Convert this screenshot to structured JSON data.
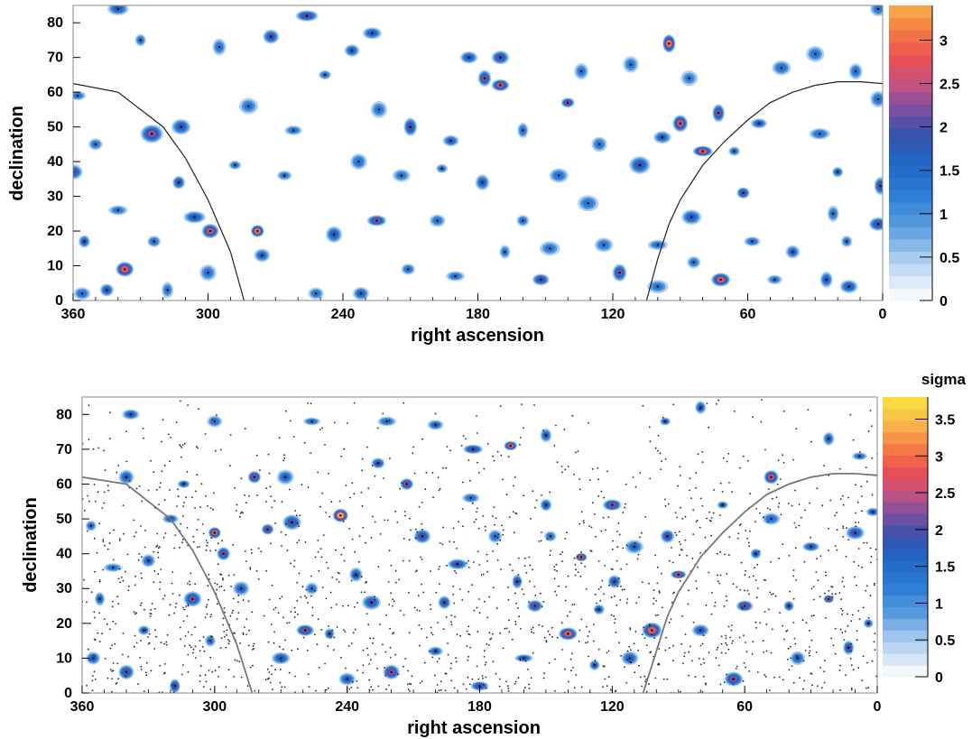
{
  "chart_data": [
    {
      "type": "heatmap",
      "id": "top",
      "title": "",
      "xlabel": "right ascension",
      "ylabel": "declination",
      "xlim": [
        360,
        0
      ],
      "ylim": [
        0,
        85
      ],
      "x_ticks": [
        360,
        300,
        240,
        180,
        120,
        60,
        0
      ],
      "y_ticks": [
        0,
        10,
        20,
        30,
        40,
        50,
        60,
        70,
        80
      ],
      "colorbar": {
        "label": "",
        "range": [
          0,
          3.4
        ],
        "ticks": [
          0,
          0.5,
          1,
          1.5,
          2,
          2.5,
          3
        ]
      },
      "boundary_curves": [
        {
          "x": [
            360,
            340,
            320,
            310,
            300,
            290,
            284
          ],
          "y": [
            62.5,
            60,
            50,
            41,
            29,
            14,
            0
          ]
        },
        {
          "x": [
            105,
            100,
            95,
            90,
            80,
            70,
            60,
            50,
            40,
            30,
            20,
            10,
            0
          ],
          "y": [
            0,
            12,
            22,
            29,
            39,
            46,
            52,
            57,
            60,
            62,
            63,
            63,
            62.5
          ]
        }
      ],
      "hotspots": [
        {
          "x": 337,
          "y": 9,
          "s": 3.0
        },
        {
          "x": 278,
          "y": 20,
          "s": 3.3
        },
        {
          "x": 299,
          "y": 20,
          "s": 2.8
        },
        {
          "x": 95,
          "y": 74,
          "s": 3.2
        },
        {
          "x": 72,
          "y": 6,
          "s": 2.9
        },
        {
          "x": 90,
          "y": 51,
          "s": 2.8
        },
        {
          "x": 80,
          "y": 43,
          "s": 2.9
        },
        {
          "x": 170,
          "y": 62,
          "s": 2.7
        },
        {
          "x": 225,
          "y": 23,
          "s": 2.3
        },
        {
          "x": 170,
          "y": 70,
          "s": 2.1
        },
        {
          "x": 140,
          "y": 57,
          "s": 2.3
        },
        {
          "x": 325,
          "y": 48,
          "s": 2.4
        },
        {
          "x": 313,
          "y": 34,
          "s": 2.0
        },
        {
          "x": 256,
          "y": 82,
          "s": 2.2
        },
        {
          "x": 272,
          "y": 76,
          "s": 2.0
        },
        {
          "x": 227,
          "y": 77,
          "s": 1.9
        },
        {
          "x": 210,
          "y": 50,
          "s": 2.2
        },
        {
          "x": 192,
          "y": 46,
          "s": 1.8
        },
        {
          "x": 184,
          "y": 70,
          "s": 1.9
        },
        {
          "x": 177,
          "y": 64,
          "s": 2.3
        },
        {
          "x": 236,
          "y": 72,
          "s": 1.8
        },
        {
          "x": 73,
          "y": 54,
          "s": 2.4
        },
        {
          "x": 117,
          "y": 8,
          "s": 2.3
        },
        {
          "x": 152,
          "y": 6,
          "s": 2.2
        },
        {
          "x": 98,
          "y": 47,
          "s": 1.7
        },
        {
          "x": 85,
          "y": 24,
          "s": 1.9
        },
        {
          "x": 62,
          "y": 31,
          "s": 2.2
        },
        {
          "x": 55,
          "y": 51,
          "s": 1.8
        },
        {
          "x": 355,
          "y": 17,
          "s": 1.8
        },
        {
          "x": 360,
          "y": 37,
          "s": 2.1
        },
        {
          "x": 306,
          "y": 24,
          "s": 1.9
        },
        {
          "x": 276,
          "y": 13,
          "s": 1.7
        },
        {
          "x": 244,
          "y": 19,
          "s": 1.9
        },
        {
          "x": 232,
          "y": 2,
          "s": 1.8
        },
        {
          "x": 211,
          "y": 9,
          "s": 1.6
        },
        {
          "x": 190,
          "y": 7,
          "s": 1.5
        },
        {
          "x": 178,
          "y": 34,
          "s": 1.8
        },
        {
          "x": 108,
          "y": 39,
          "s": 2.0
        },
        {
          "x": 131,
          "y": 28,
          "s": 1.5
        },
        {
          "x": 144,
          "y": 36,
          "s": 1.6
        },
        {
          "x": 358,
          "y": 59,
          "s": 1.5
        },
        {
          "x": 350,
          "y": 45,
          "s": 1.5
        },
        {
          "x": 345,
          "y": 3,
          "s": 1.9
        },
        {
          "x": 312,
          "y": 50,
          "s": 1.9
        },
        {
          "x": 295,
          "y": 73,
          "s": 1.5
        },
        {
          "x": 330,
          "y": 75,
          "s": 1.6
        },
        {
          "x": 2,
          "y": 22,
          "s": 2.2
        },
        {
          "x": 1,
          "y": 33,
          "s": 2.1
        },
        {
          "x": 2,
          "y": 58,
          "s": 1.6
        },
        {
          "x": 15,
          "y": 4,
          "s": 1.9
        },
        {
          "x": 25,
          "y": 6,
          "s": 1.8
        },
        {
          "x": 28,
          "y": 48,
          "s": 1.6
        },
        {
          "x": 20,
          "y": 37,
          "s": 1.7
        },
        {
          "x": 45,
          "y": 67,
          "s": 1.6
        },
        {
          "x": 30,
          "y": 71,
          "s": 1.5
        },
        {
          "x": 12,
          "y": 66,
          "s": 1.6
        },
        {
          "x": 248,
          "y": 65,
          "s": 1.5
        },
        {
          "x": 196,
          "y": 38,
          "s": 1.5
        },
        {
          "x": 233,
          "y": 40,
          "s": 1.6
        },
        {
          "x": 100,
          "y": 16,
          "s": 1.5
        },
        {
          "x": 58,
          "y": 17,
          "s": 1.6
        },
        {
          "x": 40,
          "y": 14,
          "s": 1.7
        },
        {
          "x": 16,
          "y": 17,
          "s": 1.4
        },
        {
          "x": 324,
          "y": 17,
          "s": 1.6
        },
        {
          "x": 340,
          "y": 26,
          "s": 1.4
        },
        {
          "x": 288,
          "y": 39,
          "s": 1.5
        },
        {
          "x": 262,
          "y": 49,
          "s": 1.5
        },
        {
          "x": 266,
          "y": 36,
          "s": 1.4
        },
        {
          "x": 198,
          "y": 23,
          "s": 1.5
        },
        {
          "x": 160,
          "y": 49,
          "s": 1.6
        },
        {
          "x": 126,
          "y": 45,
          "s": 1.5
        },
        {
          "x": 134,
          "y": 66,
          "s": 1.4
        },
        {
          "x": 124,
          "y": 16,
          "s": 1.5
        },
        {
          "x": 84,
          "y": 11,
          "s": 1.5
        },
        {
          "x": 22,
          "y": 25,
          "s": 1.5
        },
        {
          "x": 66,
          "y": 43,
          "s": 1.5
        },
        {
          "x": 160,
          "y": 23,
          "s": 1.5
        },
        {
          "x": 168,
          "y": 14,
          "s": 1.4
        },
        {
          "x": 252,
          "y": 2,
          "s": 1.5
        },
        {
          "x": 300,
          "y": 8,
          "s": 1.5
        },
        {
          "x": 356,
          "y": 2,
          "s": 1.6
        },
        {
          "x": 318,
          "y": 3,
          "s": 1.4
        },
        {
          "x": 214,
          "y": 36,
          "s": 1.4
        },
        {
          "x": 148,
          "y": 15,
          "s": 1.4
        },
        {
          "x": 112,
          "y": 68,
          "s": 1.4
        },
        {
          "x": 340,
          "y": 84,
          "s": 1.8
        },
        {
          "x": 2,
          "y": 84,
          "s": 1.5
        },
        {
          "x": 282,
          "y": 56,
          "s": 1.4
        },
        {
          "x": 224,
          "y": 55,
          "s": 1.4
        },
        {
          "x": 86,
          "y": 64,
          "s": 1.3
        },
        {
          "x": 48,
          "y": 6,
          "s": 1.4
        },
        {
          "x": 100,
          "y": 4,
          "s": 1.4
        }
      ]
    },
    {
      "type": "heatmap",
      "id": "bottom",
      "title": "",
      "xlabel": "right ascension",
      "ylabel": "declination",
      "xlim": [
        360,
        0
      ],
      "ylim": [
        0,
        85
      ],
      "x_ticks": [
        360,
        300,
        240,
        180,
        120,
        60,
        0
      ],
      "y_ticks": [
        0,
        10,
        20,
        30,
        40,
        50,
        60,
        70,
        80
      ],
      "colorbar": {
        "label": "sigma",
        "range": [
          0,
          3.8
        ],
        "ticks": [
          0,
          0.5,
          1,
          1.5,
          2,
          2.5,
          3,
          3.5
        ]
      },
      "boundary_curves": [
        {
          "x": [
            360,
            340,
            320,
            310,
            300,
            290,
            283
          ],
          "y": [
            62,
            60,
            50,
            41,
            29,
            14,
            0
          ]
        },
        {
          "x": [
            106,
            100,
            95,
            90,
            80,
            70,
            60,
            50,
            40,
            30,
            20,
            10,
            0
          ],
          "y": [
            0,
            12,
            22,
            29,
            39,
            46,
            52,
            57,
            60,
            62,
            63,
            63,
            62.5
          ]
        }
      ],
      "hotspots": [
        {
          "x": 243,
          "y": 51,
          "s": 3.7
        },
        {
          "x": 300,
          "y": 46,
          "s": 3.1
        },
        {
          "x": 134,
          "y": 39,
          "s": 3.0
        },
        {
          "x": 140,
          "y": 17,
          "s": 3.0
        },
        {
          "x": 102,
          "y": 18,
          "s": 3.0
        },
        {
          "x": 166,
          "y": 71,
          "s": 2.9
        },
        {
          "x": 48,
          "y": 62,
          "s": 2.8
        },
        {
          "x": 282,
          "y": 62,
          "s": 2.5
        },
        {
          "x": 296,
          "y": 40,
          "s": 2.4
        },
        {
          "x": 259,
          "y": 18,
          "s": 2.5
        },
        {
          "x": 120,
          "y": 54,
          "s": 2.5
        },
        {
          "x": 90,
          "y": 34,
          "s": 2.6
        },
        {
          "x": 22,
          "y": 27,
          "s": 2.6
        },
        {
          "x": 310,
          "y": 27,
          "s": 2.3
        },
        {
          "x": 213,
          "y": 60,
          "s": 2.4
        },
        {
          "x": 206,
          "y": 45,
          "s": 2.2
        },
        {
          "x": 155,
          "y": 25,
          "s": 2.3
        },
        {
          "x": 190,
          "y": 37,
          "s": 2.1
        },
        {
          "x": 183,
          "y": 70,
          "s": 2.2
        },
        {
          "x": 226,
          "y": 66,
          "s": 2.0
        },
        {
          "x": 265,
          "y": 49,
          "s": 2.2
        },
        {
          "x": 276,
          "y": 47,
          "s": 2.3
        },
        {
          "x": 220,
          "y": 6,
          "s": 2.4
        },
        {
          "x": 196,
          "y": 26,
          "s": 2.1
        },
        {
          "x": 65,
          "y": 4,
          "s": 2.5
        },
        {
          "x": 60,
          "y": 25,
          "s": 2.3
        },
        {
          "x": 340,
          "y": 6,
          "s": 2.2
        },
        {
          "x": 318,
          "y": 2,
          "s": 2.2
        },
        {
          "x": 180,
          "y": 2,
          "s": 2.1
        },
        {
          "x": 163,
          "y": 32,
          "s": 2.0
        },
        {
          "x": 119,
          "y": 32,
          "s": 2.0
        },
        {
          "x": 95,
          "y": 45,
          "s": 2.1
        },
        {
          "x": 13,
          "y": 13,
          "s": 2.1
        },
        {
          "x": 10,
          "y": 46,
          "s": 2.0
        },
        {
          "x": 30,
          "y": 42,
          "s": 1.9
        },
        {
          "x": 40,
          "y": 25,
          "s": 2.0
        },
        {
          "x": 55,
          "y": 40,
          "s": 1.8
        },
        {
          "x": 70,
          "y": 54,
          "s": 1.7
        },
        {
          "x": 150,
          "y": 54,
          "s": 1.9
        },
        {
          "x": 236,
          "y": 34,
          "s": 1.9
        },
        {
          "x": 248,
          "y": 17,
          "s": 1.8
        },
        {
          "x": 229,
          "y": 26,
          "s": 2.0
        },
        {
          "x": 270,
          "y": 10,
          "s": 1.9
        },
        {
          "x": 288,
          "y": 30,
          "s": 1.7
        },
        {
          "x": 330,
          "y": 38,
          "s": 1.7
        },
        {
          "x": 352,
          "y": 27,
          "s": 1.7
        },
        {
          "x": 355,
          "y": 10,
          "s": 1.8
        },
        {
          "x": 332,
          "y": 18,
          "s": 1.7
        },
        {
          "x": 314,
          "y": 60,
          "s": 1.9
        },
        {
          "x": 320,
          "y": 50,
          "s": 1.8
        },
        {
          "x": 340,
          "y": 62,
          "s": 1.8
        },
        {
          "x": 338,
          "y": 80,
          "s": 1.8
        },
        {
          "x": 300,
          "y": 78,
          "s": 1.6
        },
        {
          "x": 256,
          "y": 78,
          "s": 1.6
        },
        {
          "x": 222,
          "y": 78,
          "s": 1.6
        },
        {
          "x": 200,
          "y": 77,
          "s": 1.7
        },
        {
          "x": 150,
          "y": 74,
          "s": 1.7
        },
        {
          "x": 96,
          "y": 78,
          "s": 1.8
        },
        {
          "x": 80,
          "y": 82,
          "s": 1.8
        },
        {
          "x": 22,
          "y": 73,
          "s": 1.7
        },
        {
          "x": 8,
          "y": 68,
          "s": 1.6
        },
        {
          "x": 2,
          "y": 52,
          "s": 1.7
        },
        {
          "x": 4,
          "y": 20,
          "s": 1.7
        },
        {
          "x": 80,
          "y": 18,
          "s": 1.8
        },
        {
          "x": 112,
          "y": 10,
          "s": 1.8
        },
        {
          "x": 128,
          "y": 8,
          "s": 1.7
        },
        {
          "x": 160,
          "y": 10,
          "s": 1.8
        },
        {
          "x": 200,
          "y": 12,
          "s": 1.7
        },
        {
          "x": 240,
          "y": 4,
          "s": 1.8
        },
        {
          "x": 256,
          "y": 30,
          "s": 1.6
        },
        {
          "x": 302,
          "y": 15,
          "s": 1.6
        },
        {
          "x": 126,
          "y": 24,
          "s": 1.7
        },
        {
          "x": 173,
          "y": 45,
          "s": 1.6
        },
        {
          "x": 184,
          "y": 56,
          "s": 1.6
        },
        {
          "x": 110,
          "y": 42,
          "s": 1.7
        },
        {
          "x": 36,
          "y": 10,
          "s": 1.7
        },
        {
          "x": 48,
          "y": 50,
          "s": 1.6
        },
        {
          "x": 356,
          "y": 48,
          "s": 1.6
        },
        {
          "x": 346,
          "y": 36,
          "s": 1.5
        },
        {
          "x": 268,
          "y": 62,
          "s": 1.7
        },
        {
          "x": 148,
          "y": 45,
          "s": 1.6
        }
      ]
    }
  ]
}
